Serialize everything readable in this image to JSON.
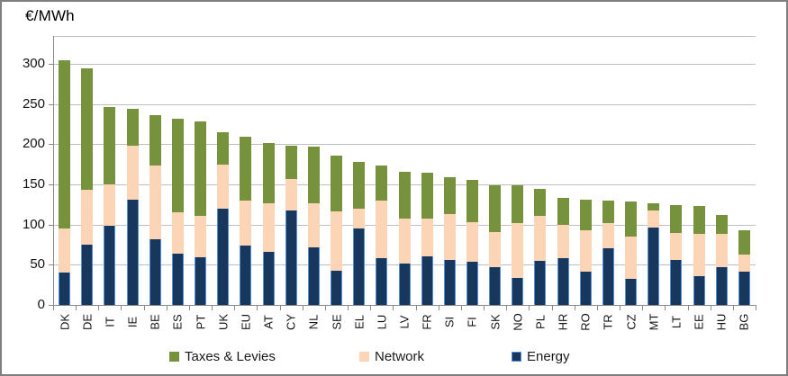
{
  "chart_data": {
    "type": "bar",
    "stacked": true,
    "title": "€/MWh",
    "categories": [
      "DK",
      "DE",
      "IT",
      "IE",
      "BE",
      "ES",
      "PT",
      "UK",
      "EU",
      "AT",
      "CY",
      "NL",
      "SE",
      "EL",
      "LU",
      "LV",
      "FR",
      "SI",
      "FI",
      "SK",
      "NO",
      "PL",
      "HR",
      "RO",
      "TR",
      "CZ",
      "MT",
      "LT",
      "EE",
      "HU",
      "BG"
    ],
    "series": [
      {
        "name": "Energy",
        "color": "#17375d",
        "border_color": "#558ed5",
        "values": [
          40,
          75,
          99,
          131,
          82,
          64,
          59,
          120,
          74,
          66,
          118,
          72,
          42,
          95,
          58,
          51,
          61,
          56,
          54,
          47,
          34,
          55,
          58,
          41,
          70,
          32,
          96,
          56,
          36,
          47,
          41
        ]
      },
      {
        "name": "Network",
        "color": "#fbd5b5",
        "values": [
          55,
          68,
          51,
          67,
          92,
          51,
          52,
          55,
          56,
          61,
          39,
          54,
          75,
          25,
          72,
          57,
          47,
          57,
          49,
          44,
          68,
          56,
          42,
          52,
          32,
          53,
          22,
          34,
          52,
          41,
          22
        ]
      },
      {
        "name": "Taxes & Levies",
        "color": "#76923c",
        "values": [
          210,
          152,
          96,
          46,
          62,
          117,
          118,
          40,
          79,
          75,
          41,
          71,
          69,
          58,
          44,
          58,
          57,
          46,
          53,
          58,
          47,
          33,
          33,
          38,
          28,
          44,
          8,
          34,
          35,
          24,
          30
        ]
      }
    ],
    "yticks": [
      0,
      50,
      100,
      150,
      200,
      250,
      300
    ],
    "ylim": [
      0,
      335
    ],
    "xlabel": "",
    "ylabel": "€/MWh",
    "grid": true,
    "legend_position": "bottom",
    "legend": [
      "Taxes & Levies",
      "Network",
      "Energy"
    ]
  },
  "colors": {
    "gridline": "#bfbfbf",
    "axis": "#898989",
    "frame_border": "#7f7f7f",
    "background": "#ffffff",
    "text": "#141414"
  }
}
